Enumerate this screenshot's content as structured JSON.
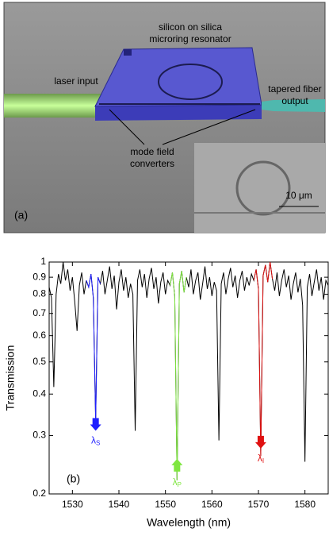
{
  "panel_a": {
    "label": "(a)",
    "texts": {
      "resonator_1": "silicon on silica",
      "resonator_2": "microring resonator",
      "laser": "laser input",
      "fiber_1": "tapered fiber",
      "fiber_2": "output",
      "converters_1": "mode field",
      "converters_2": "converters",
      "scale": "10 μm"
    }
  },
  "chart_data": {
    "type": "line",
    "panel_label": "(b)",
    "x_label": "Wavelength (nm)",
    "y_label": "Transmission",
    "log_y": true,
    "xlim": [
      1525,
      1585
    ],
    "xticks": [
      1530,
      1540,
      1550,
      1560,
      1570,
      1580
    ],
    "ylim": [
      0.2,
      1
    ],
    "yticks": [
      0.2,
      0.3,
      0.4,
      0.5,
      0.6,
      0.7,
      0.8,
      0.9,
      1
    ],
    "series": [
      {
        "color": "#000000",
        "x": [
          1525,
          1525.5,
          1526,
          1526.5,
          1527,
          1527.5,
          1528,
          1528.5,
          1529,
          1529.5,
          1530,
          1530.5,
          1531,
          1531.5,
          1532,
          1532.5,
          1533,
          1533.5,
          1534,
          1534.5,
          1535,
          1535.5,
          1536,
          1536.5,
          1537,
          1537.5,
          1538,
          1538.5,
          1539,
          1539.5,
          1540,
          1540.5,
          1541,
          1541.5,
          1542,
          1542.5,
          1543,
          1543.5,
          1544,
          1544.5,
          1545,
          1545.5,
          1546,
          1546.5,
          1547,
          1547.5,
          1548,
          1548.5,
          1549,
          1549.5,
          1550,
          1550.5,
          1551,
          1551.5,
          1552,
          1552.5,
          1553,
          1553.5,
          1554,
          1554.5,
          1555,
          1555.5,
          1556,
          1556.5,
          1557,
          1557.5,
          1558,
          1558.5,
          1559,
          1559.5,
          1560,
          1560.5,
          1561,
          1561.5,
          1562,
          1562.5,
          1563,
          1563.5,
          1564,
          1564.5,
          1565,
          1565.5,
          1566,
          1566.5,
          1567,
          1567.5,
          1568,
          1568.5,
          1569,
          1569.5,
          1570,
          1570.5,
          1571,
          1571.5,
          1572,
          1572.5,
          1573,
          1573.5,
          1574,
          1574.5,
          1575,
          1575.5,
          1576,
          1576.5,
          1577,
          1577.5,
          1578,
          1578.5,
          1579,
          1579.5,
          1580,
          1580.5,
          1581,
          1581.5,
          1582,
          1582.5,
          1583,
          1583.5,
          1584,
          1584.5,
          1585
        ],
        "values": [
          0.84,
          0.78,
          0.42,
          0.8,
          0.92,
          0.86,
          1,
          0.88,
          0.95,
          0.82,
          0.9,
          0.76,
          0.62,
          0.85,
          0.93,
          0.8,
          0.88,
          0.84,
          0.92,
          0.78,
          0.33,
          0.9,
          0.86,
          0.94,
          0.8,
          0.88,
          0.97,
          0.83,
          0.91,
          0.72,
          0.87,
          0.95,
          0.82,
          0.9,
          0.78,
          0.86,
          0.8,
          0.31,
          0.88,
          0.95,
          0.84,
          0.92,
          0.78,
          0.89,
          0.96,
          0.83,
          0.9,
          0.75,
          0.87,
          0.93,
          0.8,
          0.88,
          0.85,
          0.93,
          0.79,
          0.22,
          0.86,
          0.94,
          0.81,
          0.9,
          0.84,
          0.95,
          0.8,
          0.88,
          0.93,
          0.77,
          0.86,
          0.97,
          0.83,
          0.9,
          0.79,
          0.87,
          0.82,
          0.29,
          0.86,
          0.93,
          0.8,
          0.89,
          0.96,
          0.84,
          0.91,
          0.78,
          0.88,
          0.94,
          0.82,
          0.9,
          0.85,
          0.92,
          0.88,
          0.95,
          0.83,
          0.26,
          0.91,
          0.98,
          0.87,
          1,
          0.89,
          0.82,
          0.93,
          0.79,
          0.88,
          0.95,
          0.84,
          0.91,
          0.77,
          0.86,
          0.93,
          0.81,
          0.89,
          0.74,
          0.25,
          0.84,
          0.92,
          0.79,
          0.87,
          0.95,
          0.82,
          0.9,
          0.77,
          0.88,
          0.85
        ]
      },
      {
        "color": "#1f1fff",
        "x": [
          1533,
          1533.5,
          1534,
          1534.5,
          1535,
          1535.5,
          1536
        ],
        "values": [
          0.88,
          0.84,
          0.92,
          0.78,
          0.33,
          0.9,
          0.86
        ]
      },
      {
        "color": "#7fe640",
        "x": [
          1551,
          1551.5,
          1552,
          1552.5,
          1553,
          1553.5,
          1554,
          1554.5
        ],
        "values": [
          0.85,
          0.93,
          0.79,
          0.22,
          0.86,
          0.94,
          0.81,
          0.9
        ]
      },
      {
        "color": "#e01010",
        "x": [
          1569,
          1569.5,
          1570,
          1570.5,
          1571,
          1571.5,
          1572,
          1572.5,
          1573
        ],
        "values": [
          0.88,
          0.95,
          0.83,
          0.26,
          0.91,
          0.98,
          0.87,
          1,
          0.89
        ]
      }
    ],
    "annotations": [
      {
        "text": "λ",
        "sub": "S",
        "color": "#1f1fff",
        "x": 1535,
        "y": 0.31,
        "direction": "down"
      },
      {
        "text": "λ",
        "sub": "P",
        "color": "#7fe640",
        "x": 1552.5,
        "y": 0.255,
        "direction": "up"
      },
      {
        "text": "λ",
        "sub": "I",
        "color": "#e01010",
        "x": 1570.5,
        "y": 0.274,
        "direction": "down"
      }
    ]
  }
}
